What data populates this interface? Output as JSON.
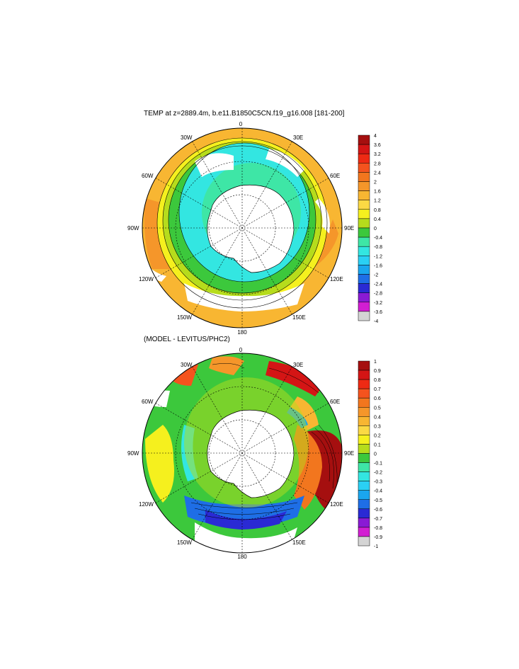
{
  "panels": [
    {
      "title": "TEMP at z=2889.4m, b.e11.B1850C5CN.f19_g16.008 [181-200]",
      "map_labels": {
        "top": "0",
        "bottom": "180",
        "left": "90W",
        "right": "90E",
        "upper_left_1": "30W",
        "upper_left_2": "60W",
        "upper_right_1": "30E",
        "upper_right_2": "60E",
        "lower_left_1": "120W",
        "lower_left_2": "150W",
        "lower_right_1": "120E",
        "lower_right_2": "150E"
      },
      "colorbar": {
        "labels": [
          "4",
          "3.6",
          "3.2",
          "2.8",
          "2.4",
          "2",
          "1.6",
          "1.2",
          "0.8",
          "0.4",
          "0",
          "-0.4",
          "-0.8",
          "-1.2",
          "-1.6",
          "-2",
          "-2.4",
          "-2.8",
          "-3.2",
          "-3.6",
          "-4"
        ],
        "colors": [
          "#a50f0f",
          "#d41515",
          "#ee2a14",
          "#f4531e",
          "#f2761e",
          "#f5962a",
          "#f8b632",
          "#fbd944",
          "#f5f01e",
          "#b6dc1c",
          "#3cc83c",
          "#3ee6a6",
          "#33e6e1",
          "#2ad0f4",
          "#1aa6ee",
          "#1e6ee6",
          "#2a2ad4",
          "#8a1ad4",
          "#d21ed2",
          "#d4d4d4"
        ],
        "bottom_color": "#707070"
      }
    },
    {
      "title": "(MODEL - LEVITUS/PHC2)",
      "map_labels": {
        "top": "0",
        "bottom": "180",
        "left": "90W",
        "right": "90E",
        "upper_left_1": "30W",
        "upper_left_2": "60W",
        "upper_right_1": "30E",
        "upper_right_2": "60E",
        "lower_left_1": "120W",
        "lower_left_2": "150W",
        "lower_right_1": "120E",
        "lower_right_2": "150E"
      },
      "colorbar": {
        "labels": [
          "1",
          "0.9",
          "0.8",
          "0.7",
          "0.6",
          "0.5",
          "0.4",
          "0.3",
          "0.2",
          "0.1",
          "0",
          "-0.1",
          "-0.2",
          "-0.3",
          "-0.4",
          "-0.5",
          "-0.6",
          "-0.7",
          "-0.8",
          "-0.9",
          "-1"
        ],
        "colors": [
          "#a50f0f",
          "#d41515",
          "#ee2a14",
          "#f4531e",
          "#f2761e",
          "#f5962a",
          "#f8b632",
          "#fbd944",
          "#f5f01e",
          "#b6dc1c",
          "#3cc83c",
          "#3ee6a6",
          "#33e6e1",
          "#2ad0f4",
          "#1aa6ee",
          "#1e6ee6",
          "#2a2ad4",
          "#8a1ad4",
          "#d21ed2",
          "#d4d4d4"
        ],
        "bottom_color": "#707070"
      }
    }
  ]
}
